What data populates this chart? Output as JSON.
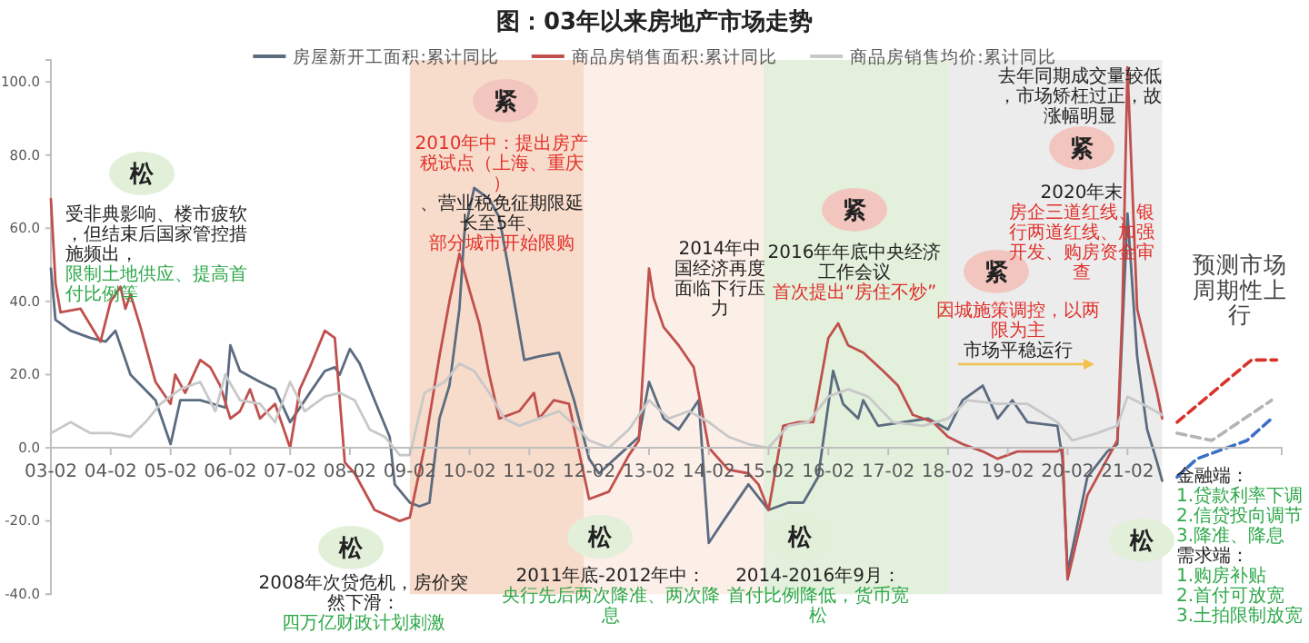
{
  "chart_data": {
    "type": "line",
    "title": "图：03年以来房地产市场走势",
    "legend": "top",
    "line_style": "solid",
    "xlim": [
      "2003-02",
      "2023-09"
    ],
    "xticks": [
      {
        "value": "2003-02",
        "label": "03-02"
      },
      {
        "value": "2004-02",
        "label": "04-02"
      },
      {
        "value": "2005-02",
        "label": "05-02"
      },
      {
        "value": "2006-02",
        "label": "06-02"
      },
      {
        "value": "2007-02",
        "label": "07-02"
      },
      {
        "value": "2008-02",
        "label": "08-02"
      },
      {
        "value": "2009-02",
        "label": "09-02"
      },
      {
        "value": "2010-02",
        "label": "10-02"
      },
      {
        "value": "2011-02",
        "label": "11-02"
      },
      {
        "value": "2012-02",
        "label": "12-02"
      },
      {
        "value": "2013-02",
        "label": "13-02"
      },
      {
        "value": "2014-02",
        "label": "14-02"
      },
      {
        "value": "2015-02",
        "label": "15-02"
      },
      {
        "value": "2016-02",
        "label": "16-02"
      },
      {
        "value": "2017-02",
        "label": "17-02"
      },
      {
        "value": "2018-02",
        "label": "18-02"
      },
      {
        "value": "2019-02",
        "label": "19-02"
      },
      {
        "value": "2020-02",
        "label": "20-02"
      },
      {
        "value": "2021-02",
        "label": "21-02"
      }
    ],
    "ylim": [
      -40,
      106
    ],
    "yticks": [
      {
        "value": -40,
        "label": "-40.0"
      },
      {
        "value": -20,
        "label": "-20.0"
      },
      {
        "value": 0,
        "label": "0.0"
      },
      {
        "value": 20,
        "label": "20.0"
      },
      {
        "value": 40,
        "label": "40.0"
      },
      {
        "value": 60,
        "label": "60.0"
      },
      {
        "value": 80,
        "label": "80.0"
      },
      {
        "value": 100,
        "label": "100.0"
      }
    ],
    "bands": [
      {
        "axis": "x",
        "from": "2009-02",
        "to": "2012-01",
        "color": "#f8dccb"
      },
      {
        "axis": "x",
        "from": "2012-01",
        "to": "2015-01",
        "color": "#fcefe8"
      },
      {
        "axis": "x",
        "from": "2015-01",
        "to": "2018-02",
        "color": "#e3f0db"
      },
      {
        "axis": "x",
        "from": "2018-02",
        "to": "2021-09",
        "color": "#ececec"
      }
    ],
    "series": [
      {
        "name": "房屋新开工面积:累计同比",
        "color": "#5b6b80",
        "x": [
          "2003-02",
          "2003-03",
          "2003-06",
          "2003-10",
          "2004-01",
          "2004-03",
          "2004-06",
          "2004-11",
          "2005-02",
          "2005-04",
          "2005-08",
          "2006-01",
          "2006-02",
          "2006-04",
          "2006-08",
          "2006-11",
          "2007-02",
          "2007-06",
          "2007-09",
          "2007-11",
          "2007-12",
          "2008-02",
          "2008-04",
          "2008-07",
          "2008-10",
          "2008-11",
          "2009-02",
          "2009-04",
          "2009-06",
          "2009-08",
          "2009-10",
          "2009-12",
          "2010-01",
          "2010-03",
          "2010-06",
          "2010-08",
          "2010-10",
          "2011-01",
          "2011-04",
          "2011-08",
          "2011-11",
          "2012-02",
          "2012-04",
          "2012-08",
          "2012-12",
          "2013-02",
          "2013-05",
          "2013-08",
          "2013-12",
          "2014-02",
          "2014-05",
          "2014-10",
          "2015-02",
          "2015-06",
          "2015-09",
          "2015-12",
          "2016-03",
          "2016-05",
          "2016-08",
          "2016-09",
          "2016-12",
          "2017-05",
          "2017-10",
          "2018-02",
          "2018-05",
          "2018-09",
          "2018-12",
          "2019-03",
          "2019-06",
          "2019-12",
          "2020-01",
          "2020-02",
          "2020-06",
          "2020-10",
          "2020-12",
          "2021-02",
          "2021-04",
          "2021-06",
          "2021-08",
          "2021-09"
        ],
        "values": [
          49,
          35,
          32,
          30,
          29,
          32,
          20,
          13,
          1,
          13,
          13,
          11,
          28,
          21,
          18,
          16,
          7,
          15,
          21,
          22,
          20,
          27,
          23,
          13,
          3,
          -10,
          -15,
          -16,
          -15,
          8,
          17,
          38,
          59,
          71,
          68,
          63,
          48,
          24,
          25,
          26,
          13,
          -3,
          -7,
          -2,
          3,
          18,
          8,
          5,
          13,
          -26,
          -20,
          -10,
          -17,
          -15,
          -15,
          -8,
          21,
          12,
          8,
          13,
          6,
          7,
          8,
          5,
          13,
          17,
          8,
          13,
          7,
          6,
          -3,
          -34,
          -8,
          -1,
          1,
          64,
          25,
          5,
          -4,
          -9
        ]
      },
      {
        "name": "商品房销售面积:累计同比",
        "color": "#c0504d",
        "x": [
          "2003-02",
          "2003-03",
          "2003-04",
          "2003-08",
          "2003-12",
          "2004-02",
          "2004-04",
          "2004-05",
          "2004-06",
          "2004-08",
          "2004-11",
          "2005-02",
          "2005-03",
          "2005-05",
          "2005-08",
          "2005-10",
          "2005-12",
          "2006-02",
          "2006-04",
          "2006-06",
          "2006-08",
          "2006-11",
          "2007-02",
          "2007-04",
          "2007-06",
          "2007-09",
          "2007-11",
          "2008-01",
          "2008-03",
          "2008-07",
          "2008-12",
          "2009-02",
          "2009-05",
          "2009-08",
          "2009-10",
          "2009-12",
          "2010-02",
          "2010-04",
          "2010-06",
          "2010-08",
          "2010-12",
          "2011-03",
          "2011-04",
          "2011-07",
          "2011-10",
          "2011-12",
          "2012-02",
          "2012-06",
          "2012-10",
          "2012-12",
          "2013-02",
          "2013-03",
          "2013-05",
          "2013-08",
          "2013-11",
          "2014-02",
          "2014-06",
          "2014-10",
          "2014-12",
          "2015-02",
          "2015-05",
          "2015-08",
          "2015-11",
          "2016-02",
          "2016-04",
          "2016-06",
          "2016-09",
          "2017-01",
          "2017-04",
          "2017-07",
          "2017-11",
          "2018-02",
          "2018-05",
          "2018-09",
          "2018-12",
          "2019-04",
          "2019-08",
          "2019-12",
          "2020-01",
          "2020-02",
          "2020-06",
          "2020-10",
          "2020-12",
          "2021-01",
          "2021-02",
          "2021-04",
          "2021-08",
          "2021-09"
        ],
        "values": [
          68,
          45,
          37,
          38,
          29,
          40,
          44,
          38,
          42,
          33,
          18,
          12,
          20,
          15,
          24,
          22,
          17,
          8,
          10,
          16,
          8,
          12,
          0,
          16,
          22,
          32,
          30,
          -4,
          -7,
          -17,
          -20,
          -19,
          0,
          25,
          40,
          53,
          43,
          34,
          20,
          8,
          10,
          15,
          8,
          13,
          12,
          -1,
          -14,
          -12,
          -2,
          2,
          49,
          41,
          33,
          28,
          22,
          0,
          -6,
          -7,
          -10,
          -17,
          6,
          7,
          7,
          30,
          34,
          28,
          26,
          21,
          17,
          9,
          7,
          3,
          1,
          -1,
          -3,
          -1,
          -1,
          -1,
          0,
          -36,
          -13,
          -3,
          2,
          38,
          104,
          38,
          15,
          8
        ]
      },
      {
        "name": "商品房销售均价:累计同比",
        "color": "#c8c8c8",
        "x": [
          "2003-02",
          "2003-06",
          "2003-10",
          "2004-02",
          "2004-06",
          "2004-09",
          "2004-12",
          "2005-04",
          "2005-08",
          "2005-11",
          "2006-01",
          "2006-04",
          "2006-08",
          "2006-11",
          "2007-02",
          "2007-05",
          "2007-09",
          "2007-12",
          "2008-03",
          "2008-06",
          "2008-09",
          "2008-12",
          "2009-02",
          "2009-05",
          "2009-09",
          "2009-12",
          "2010-03",
          "2010-06",
          "2010-09",
          "2010-12",
          "2011-04",
          "2011-08",
          "2011-12",
          "2012-02",
          "2012-06",
          "2012-10",
          "2013-02",
          "2013-06",
          "2013-10",
          "2014-02",
          "2014-06",
          "2014-10",
          "2015-02",
          "2015-06",
          "2015-10",
          "2016-02",
          "2016-06",
          "2016-10",
          "2017-03",
          "2017-09",
          "2018-02",
          "2018-06",
          "2018-12",
          "2019-06",
          "2019-12",
          "2020-03",
          "2020-08",
          "2020-12",
          "2021-02",
          "2021-05",
          "2021-09"
        ],
        "values": [
          4,
          7,
          4,
          4,
          3,
          7,
          12,
          16,
          18,
          10,
          20,
          13,
          12,
          7,
          18,
          10,
          14,
          15,
          13,
          5,
          3,
          -2,
          -2,
          15,
          18,
          23,
          21,
          15,
          8,
          6,
          8,
          10,
          5,
          2,
          0,
          5,
          13,
          8,
          10,
          7,
          3,
          1,
          0,
          6,
          7,
          14,
          16,
          14,
          7,
          6,
          8,
          13,
          12,
          12,
          7,
          2,
          4,
          6,
          14,
          12,
          9
        ]
      },
      {
        "color": "#d9322b",
        "line_style": "dashed",
        "x": [
          "2021-12",
          "2023-02",
          "2023-03",
          "2023-08"
        ],
        "values": [
          7,
          23,
          24,
          24
        ]
      },
      {
        "color": "#b4b4b4",
        "line_style": "dashed",
        "x": [
          "2021-12",
          "2022-07",
          "2023-07"
        ],
        "values": [
          4,
          2,
          13
        ]
      },
      {
        "color": "#3d6fc7",
        "line_style": "dashed",
        "x": [
          "2021-12",
          "2022-04",
          "2023-02",
          "2023-07"
        ],
        "values": [
          -8,
          -3,
          2,
          8
        ]
      }
    ],
    "annotations": [
      "松",
      "受非典影响、楼市疲软，但结束后国家管控措施频出，",
      "限制土地供应、提高首付比例等",
      "紧",
      "2010年中：提出房产税试点（上海、重庆）",
      "、营业税免征期限延长至5年、",
      "部分城市开始限购",
      "2014年中国经济再度面临下行压力",
      "紧",
      "2016年年底中央经济工作会议",
      "首次提出“房住不炒”",
      "紧",
      "因城施策调控，以两限为主",
      "市场平稳运行",
      "去年同期成交量较低，市场矫枉过正，故涨幅明显",
      "紧",
      "2020年末",
      "房企三道红线、银行两道红线、加强开发、购房资金审查",
      "预测市场周期性上行",
      "松",
      "2008年次贷危机，房价突然下滑：",
      "四万亿财政计划刺激",
      "松",
      "2011年底-2012年中：",
      "央行先后两次降准、两次降息",
      "松",
      "2014-2016年9月：",
      "首付比例降低，货币宽松",
      "松",
      "金融端：",
      "1.贷款利率下调",
      "2.信贷投向调节",
      "3.降准、降息",
      "需求端：",
      "1.购房补贴",
      "2.首付可放宽",
      "3.土拍限制放宽"
    ]
  }
}
